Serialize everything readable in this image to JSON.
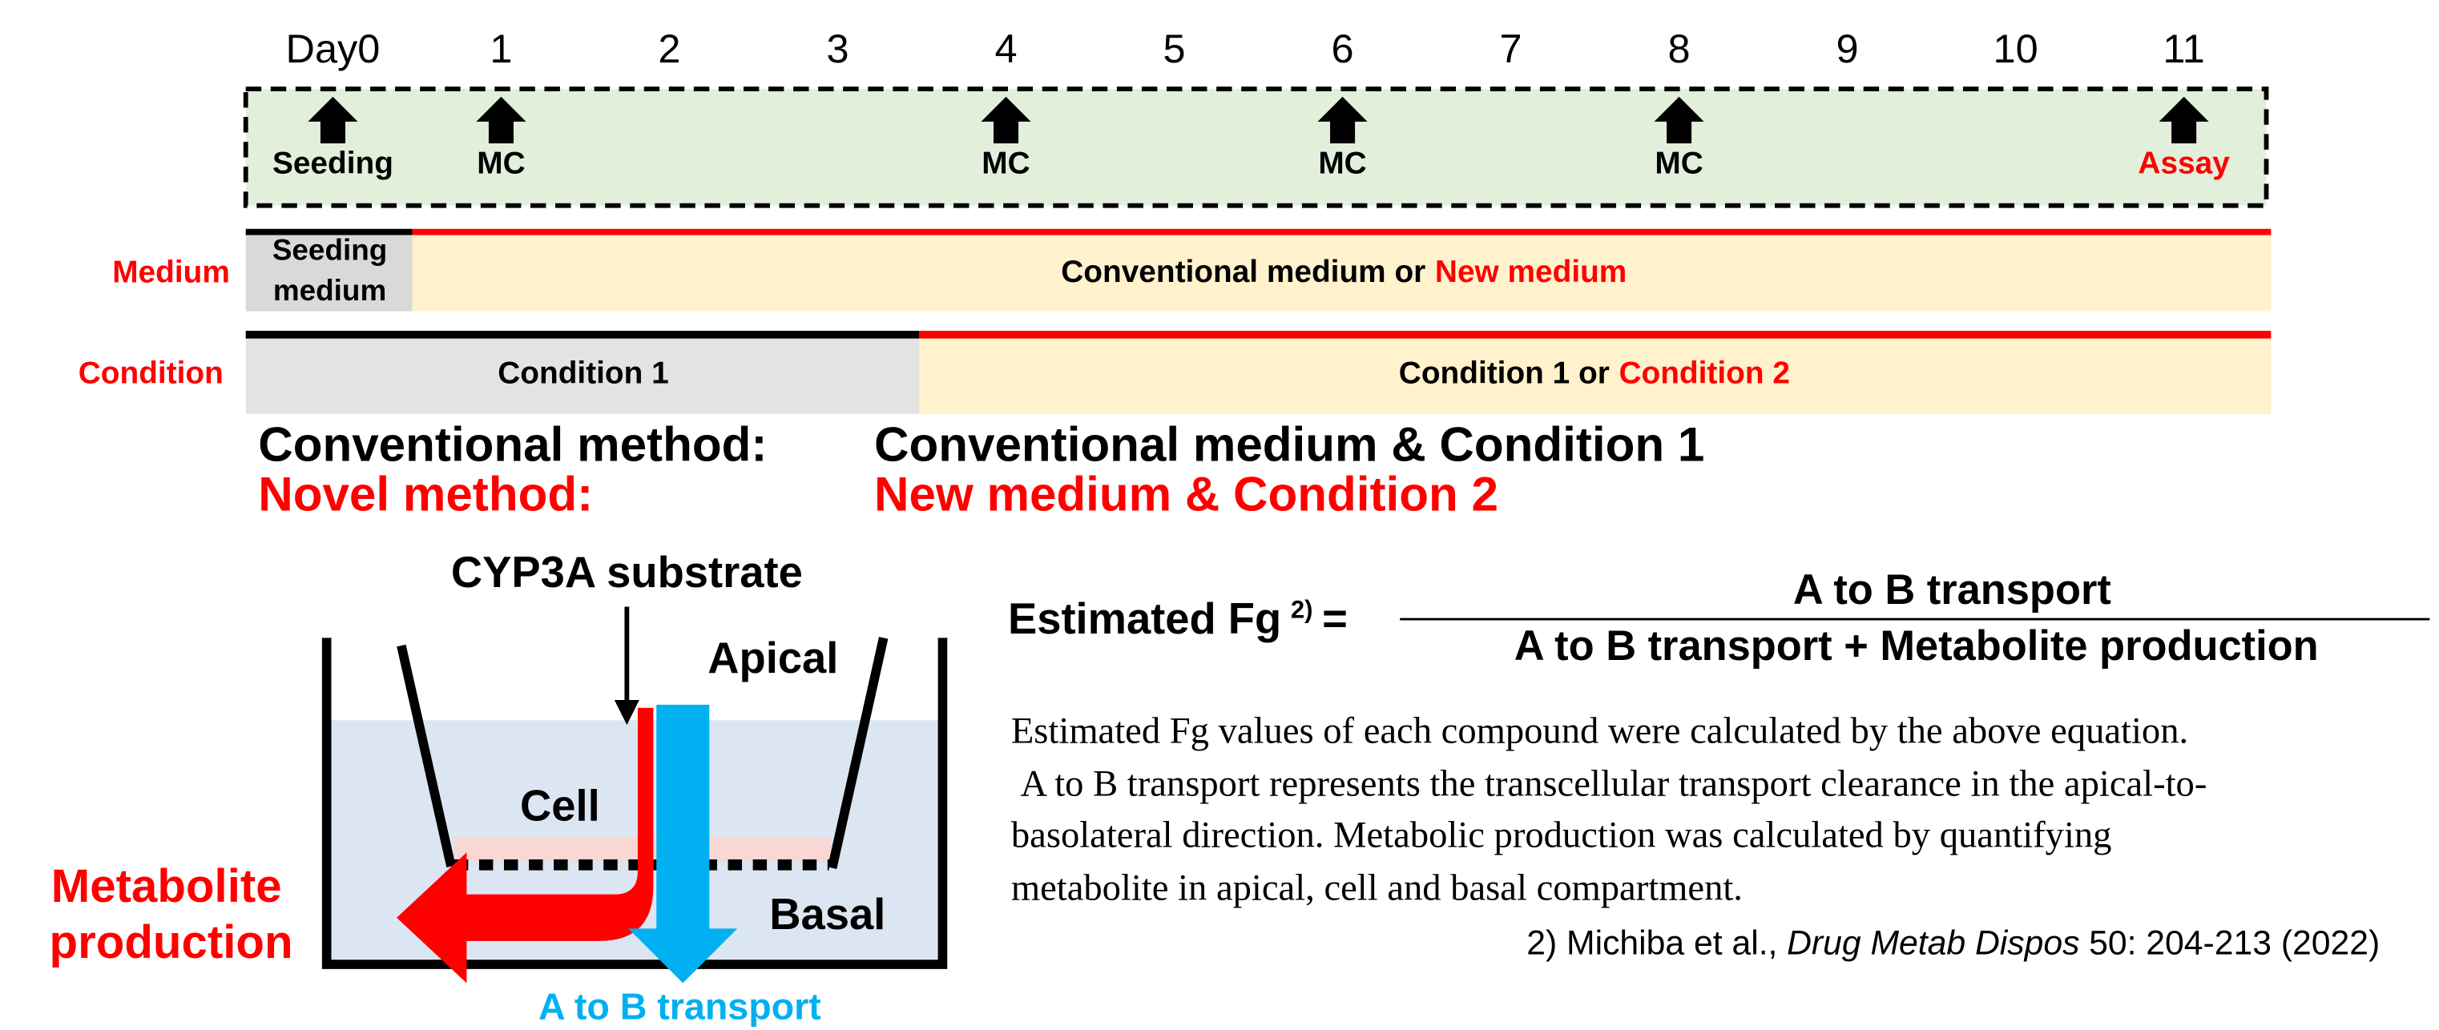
{
  "timeline": {
    "days": [
      "Day0",
      "1",
      "2",
      "3",
      "4",
      "5",
      "6",
      "7",
      "8",
      "9",
      "10",
      "11"
    ],
    "events": [
      "Seeding",
      "MC",
      "MC",
      "MC",
      "MC",
      "Assay"
    ]
  },
  "medium": {
    "label": "Medium",
    "seeding": [
      "Seeding",
      "medium"
    ],
    "main": "Conventional medium or",
    "main_new": "New medium"
  },
  "condition": {
    "label": "Condition",
    "first": "Condition 1",
    "second": "Condition 1 or",
    "second_new": "Condition 2"
  },
  "methods": {
    "conventional_name": "Conventional method:",
    "conventional_desc": "Conventional medium & Condition 1",
    "novel_name": "Novel method:",
    "novel_desc": "New medium & Condition 2"
  },
  "diagram": {
    "substrate": "CYP3A substrate",
    "apical": "Apical",
    "cell": "Cell",
    "basal": "Basal",
    "metabolite": [
      "Metabolite",
      "production"
    ],
    "transport": "A to B transport"
  },
  "equation": {
    "lhs": "Estimated Fg",
    "ref": "2)",
    "equals": "=",
    "numerator": "A to B transport",
    "denominator": "A to B transport + Metabolite production"
  },
  "description": [
    "Estimated Fg values of each compound were calculated by the above equation.",
    "A to B transport represents the transcellular transport clearance in the apical-to-",
    "basolateral direction.  Metabolic production was calculated by quantifying",
    "metabolite in apical, cell and basal compartment."
  ],
  "reference": {
    "prefix": "2) Michiba et al.,",
    "journal": "Drug Metab Dispos",
    "suffix": "50: 204-213 (2022)"
  }
}
